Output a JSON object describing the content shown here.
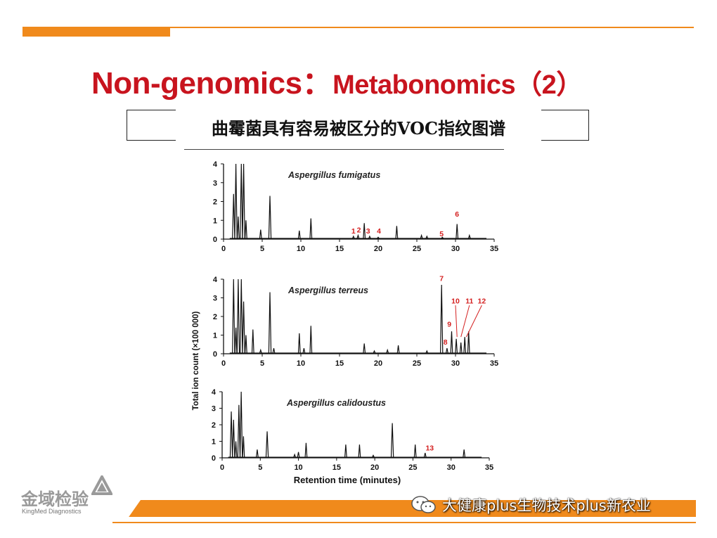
{
  "slide": {
    "title_part1": "Non-genomics：",
    "title_part2": "Metabonomics（2）",
    "subtitle": "曲霉菌具有容易被区分的VOC指纹图谱"
  },
  "branding": {
    "logo_cn": "金域检验",
    "logo_en": "KingMed Diagnostics",
    "watermark": "大健康plus生物技术plus新农业",
    "accent_color": "#f08a1c",
    "title_color": "#c8141e",
    "wechat_icon": "wechat-icon"
  },
  "chart_data": [
    {
      "type": "line",
      "title": "Aspergillus fumigatus",
      "xlim": [
        0,
        35
      ],
      "ylim": [
        0,
        4
      ],
      "xticks": [
        0,
        5,
        10,
        15,
        20,
        25,
        30,
        35
      ],
      "yticks": [
        0,
        1,
        2,
        3,
        4
      ],
      "peaks": [
        {
          "x": 1.3,
          "y": 2.4
        },
        {
          "x": 1.6,
          "y": 4.0
        },
        {
          "x": 1.9,
          "y": 1.2
        },
        {
          "x": 2.3,
          "y": 4.0
        },
        {
          "x": 2.6,
          "y": 4.0
        },
        {
          "x": 2.9,
          "y": 1.0
        },
        {
          "x": 4.8,
          "y": 0.5
        },
        {
          "x": 6.0,
          "y": 2.3
        },
        {
          "x": 9.8,
          "y": 0.45
        },
        {
          "x": 11.3,
          "y": 1.1
        },
        {
          "x": 16.8,
          "y": 0.15
        },
        {
          "x": 17.4,
          "y": 0.2
        },
        {
          "x": 18.2,
          "y": 0.85
        },
        {
          "x": 18.9,
          "y": 0.15
        },
        {
          "x": 20.0,
          "y": 0.1
        },
        {
          "x": 22.4,
          "y": 0.7
        },
        {
          "x": 25.6,
          "y": 0.2
        },
        {
          "x": 26.3,
          "y": 0.15
        },
        {
          "x": 28.3,
          "y": 0.1
        },
        {
          "x": 30.2,
          "y": 0.8
        },
        {
          "x": 31.8,
          "y": 0.2
        }
      ],
      "annotations": [
        {
          "label": "1",
          "x": 16.8,
          "y": 0.3
        },
        {
          "label": "2",
          "x": 17.5,
          "y": 0.35
        },
        {
          "label": "3",
          "x": 18.7,
          "y": 0.3
        },
        {
          "label": "4",
          "x": 20.1,
          "y": 0.3
        },
        {
          "label": "5",
          "x": 28.2,
          "y": 0.15
        },
        {
          "label": "6",
          "x": 30.2,
          "y": 1.2
        }
      ]
    },
    {
      "type": "line",
      "title": "Aspergillus terreus",
      "ylabel": "Total ion count (×100 000)",
      "xlim": [
        0,
        35
      ],
      "ylim": [
        0,
        4
      ],
      "xticks": [
        0,
        5,
        10,
        15,
        20,
        25,
        30,
        35
      ],
      "yticks": [
        0,
        1,
        2,
        3,
        4
      ],
      "peaks": [
        {
          "x": 1.3,
          "y": 4.0
        },
        {
          "x": 1.6,
          "y": 1.4
        },
        {
          "x": 1.9,
          "y": 4.0
        },
        {
          "x": 2.3,
          "y": 4.0
        },
        {
          "x": 2.6,
          "y": 2.8
        },
        {
          "x": 2.9,
          "y": 1.0
        },
        {
          "x": 3.8,
          "y": 1.3
        },
        {
          "x": 4.8,
          "y": 0.2
        },
        {
          "x": 6.0,
          "y": 3.3
        },
        {
          "x": 6.5,
          "y": 0.3
        },
        {
          "x": 9.8,
          "y": 1.1
        },
        {
          "x": 10.4,
          "y": 0.3
        },
        {
          "x": 11.3,
          "y": 1.5
        },
        {
          "x": 18.2,
          "y": 0.55
        },
        {
          "x": 19.5,
          "y": 0.15
        },
        {
          "x": 21.2,
          "y": 0.2
        },
        {
          "x": 22.6,
          "y": 0.45
        },
        {
          "x": 26.3,
          "y": 0.15
        },
        {
          "x": 28.2,
          "y": 3.7
        },
        {
          "x": 28.9,
          "y": 0.3
        },
        {
          "x": 29.5,
          "y": 1.2
        },
        {
          "x": 30.1,
          "y": 0.8
        },
        {
          "x": 30.7,
          "y": 0.6
        },
        {
          "x": 31.2,
          "y": 0.9
        },
        {
          "x": 31.7,
          "y": 1.2
        }
      ],
      "annotations": [
        {
          "label": "7",
          "x": 28.2,
          "y": 3.9
        },
        {
          "label": "8",
          "x": 28.7,
          "y": 0.5
        },
        {
          "label": "9",
          "x": 29.2,
          "y": 1.45
        },
        {
          "label": "10",
          "x": 30.0,
          "y": 2.7
        },
        {
          "label": "11",
          "x": 31.8,
          "y": 2.7
        },
        {
          "label": "12",
          "x": 33.4,
          "y": 2.7
        }
      ]
    },
    {
      "type": "line",
      "title": "Aspergillus calidoustus",
      "xlabel": "Retention time (minutes)",
      "xlim": [
        0,
        35
      ],
      "ylim": [
        0,
        4
      ],
      "xticks": [
        0,
        5,
        10,
        15,
        20,
        25,
        30,
        35
      ],
      "yticks": [
        0,
        1,
        2,
        3,
        4
      ],
      "peaks": [
        {
          "x": 1.2,
          "y": 2.8
        },
        {
          "x": 1.5,
          "y": 2.3
        },
        {
          "x": 1.8,
          "y": 1.0
        },
        {
          "x": 2.2,
          "y": 3.2
        },
        {
          "x": 2.5,
          "y": 4.0
        },
        {
          "x": 2.8,
          "y": 1.3
        },
        {
          "x": 4.6,
          "y": 0.5
        },
        {
          "x": 5.9,
          "y": 1.6
        },
        {
          "x": 9.5,
          "y": 0.2
        },
        {
          "x": 10.0,
          "y": 0.35
        },
        {
          "x": 11.0,
          "y": 0.9
        },
        {
          "x": 16.2,
          "y": 0.8
        },
        {
          "x": 18.0,
          "y": 0.8
        },
        {
          "x": 19.8,
          "y": 0.15
        },
        {
          "x": 22.3,
          "y": 2.1
        },
        {
          "x": 25.3,
          "y": 0.8
        },
        {
          "x": 26.6,
          "y": 0.3
        },
        {
          "x": 31.7,
          "y": 0.5
        }
      ],
      "annotations": [
        {
          "label": "13",
          "x": 27.2,
          "y": 0.45
        }
      ]
    }
  ]
}
